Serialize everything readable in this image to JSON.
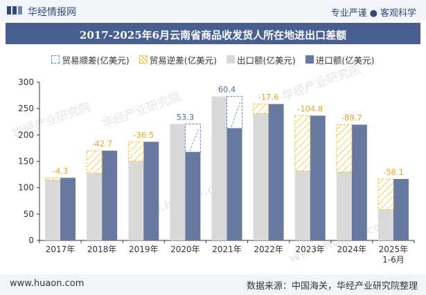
{
  "header": {
    "brand": "华经情报网",
    "slogan_left": "专业严谨",
    "slogan_right": "客观科学",
    "brand_color": "#2f4a78"
  },
  "legend": {
    "items": [
      {
        "label": "贸易顺差(亿美元)",
        "style": "surplus"
      },
      {
        "label": "贸易逆差(亿美元)",
        "style": "deficit"
      },
      {
        "label": "出口额(亿美元)",
        "style": "export"
      },
      {
        "label": "进口额(亿美元)",
        "style": "import"
      }
    ]
  },
  "colors": {
    "export": "#d9d9d9",
    "import": "#68799f",
    "surplus_stroke": "#5b84b7",
    "deficit_stroke": "#f5c036",
    "title_bg": "#4a5f91",
    "label": "#e6a51e",
    "surplus_label": "#4a6da3"
  },
  "watermarks": [
    "华经产业研究院",
    "www.huaon.com"
  ],
  "footer": {
    "url": "www.huaon.com",
    "source": "数据来源：中国海关，华经产业研究院整理"
  },
  "chart_data": {
    "type": "bar",
    "title": "2017-2025年6月云南省商品收发货人所在地进出口差额",
    "categories": [
      "2017年",
      "2018年",
      "2019年",
      "2020年",
      "2021年",
      "2022年",
      "2023年",
      "2024年",
      "2025年\n1-6月"
    ],
    "series": [
      {
        "name": "出口额(亿美元)",
        "values": [
          114.5,
          127.5,
          150.5,
          220.8,
          273.0,
          241.0,
          131.8,
          129.8,
          58.4
        ]
      },
      {
        "name": "进口额(亿美元)",
        "values": [
          118.8,
          170.2,
          187.0,
          167.5,
          212.6,
          258.6,
          236.6,
          219.5,
          116.5
        ]
      }
    ],
    "balance": {
      "name_surplus": "贸易顺差(亿美元)",
      "name_deficit": "贸易逆差(亿美元)",
      "values": [
        -4.3,
        -42.7,
        -36.5,
        53.3,
        60.4,
        -17.6,
        -104.8,
        -89.7,
        -58.1
      ],
      "labels": [
        "-4.3",
        "-42.7",
        "-36.5",
        "53.3",
        "60.4",
        "-17.6",
        "-104.8",
        "-89.7",
        "-58.1"
      ]
    },
    "ylim": [
      0,
      300
    ],
    "yticks": [
      0,
      50,
      100,
      150,
      200,
      250,
      300
    ],
    "grid": false,
    "legend_position": "top"
  }
}
